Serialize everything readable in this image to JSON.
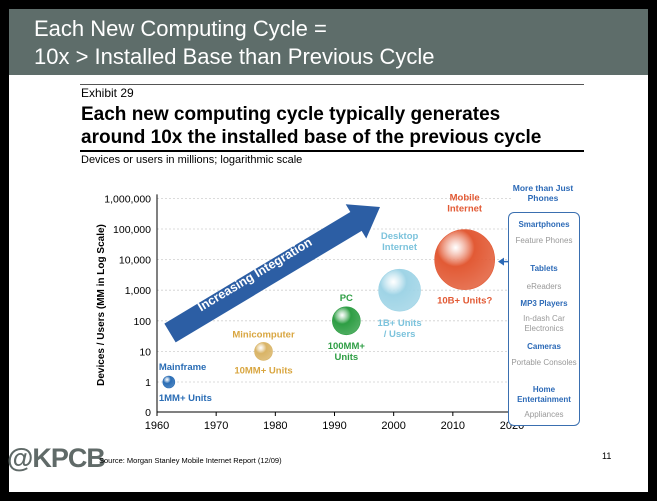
{
  "header": {
    "line1": "Each New Computing Cycle =",
    "line2": "10x > Installed Base than Previous Cycle"
  },
  "exhibit": {
    "label": "Exhibit 29",
    "title_line1": "Each new computing cycle typically generates",
    "title_line2": "around 10x the installed base of the previous cycle",
    "subtitle": "Devices or users in millions; logarithmic scale"
  },
  "chart_data": {
    "type": "scatter",
    "scale": "log",
    "ylabel": "Devices / Users (MM in Log Scale)",
    "xlim": [
      1960,
      2020
    ],
    "x_ticks": [
      "1960",
      "1970",
      "1980",
      "1990",
      "2000",
      "2010",
      "2020"
    ],
    "y_ticks": [
      "0",
      "1",
      "10",
      "100",
      "1,000",
      "10,000",
      "100,000",
      "1,000,000"
    ],
    "arrow_label": "Increasing Integration",
    "points": [
      {
        "name": "Mainframe",
        "x": 1962,
        "y": 1,
        "value_label": "1MM+ Units",
        "color": "#2a6db5"
      },
      {
        "name": "Minicomputer",
        "x": 1978,
        "y": 10,
        "value_label": "10MM+ Units",
        "color": "#d9b466"
      },
      {
        "name": "PC",
        "x": 1992,
        "y": 100,
        "value_label": "100MM+ Units",
        "color": "#2e9e44"
      },
      {
        "name": "Desktop Internet",
        "x": 2001,
        "y": 1000,
        "value_label": "1B+ Units / Users",
        "color": "#9fd4e6"
      },
      {
        "name": "Mobile Internet",
        "x": 2012,
        "y": 10000,
        "value_label": "10B+ Units?",
        "color": "#e25a35"
      }
    ]
  },
  "sidebar": {
    "heading": "More than Just Phones",
    "items": [
      {
        "label": "Smartphones",
        "style": "blue"
      },
      {
        "label": "Feature Phones",
        "style": "gray"
      },
      {
        "label": "Tablets",
        "style": "blue"
      },
      {
        "label": "eReaders",
        "style": "gray"
      },
      {
        "label": "MP3 Players",
        "style": "blue"
      },
      {
        "label": "In-dash Car Electronics",
        "style": "gray"
      },
      {
        "label": "Cameras",
        "style": "blue"
      },
      {
        "label": "Portable Consoles",
        "style": "gray"
      },
      {
        "label": "Home Entertainment",
        "style": "blue"
      },
      {
        "label": "Appliances",
        "style": "gray"
      }
    ]
  },
  "footer": {
    "logo": "@KPCB",
    "source": "Source: Morgan Stanley Mobile Internet Report (12/09)",
    "page": "11"
  }
}
